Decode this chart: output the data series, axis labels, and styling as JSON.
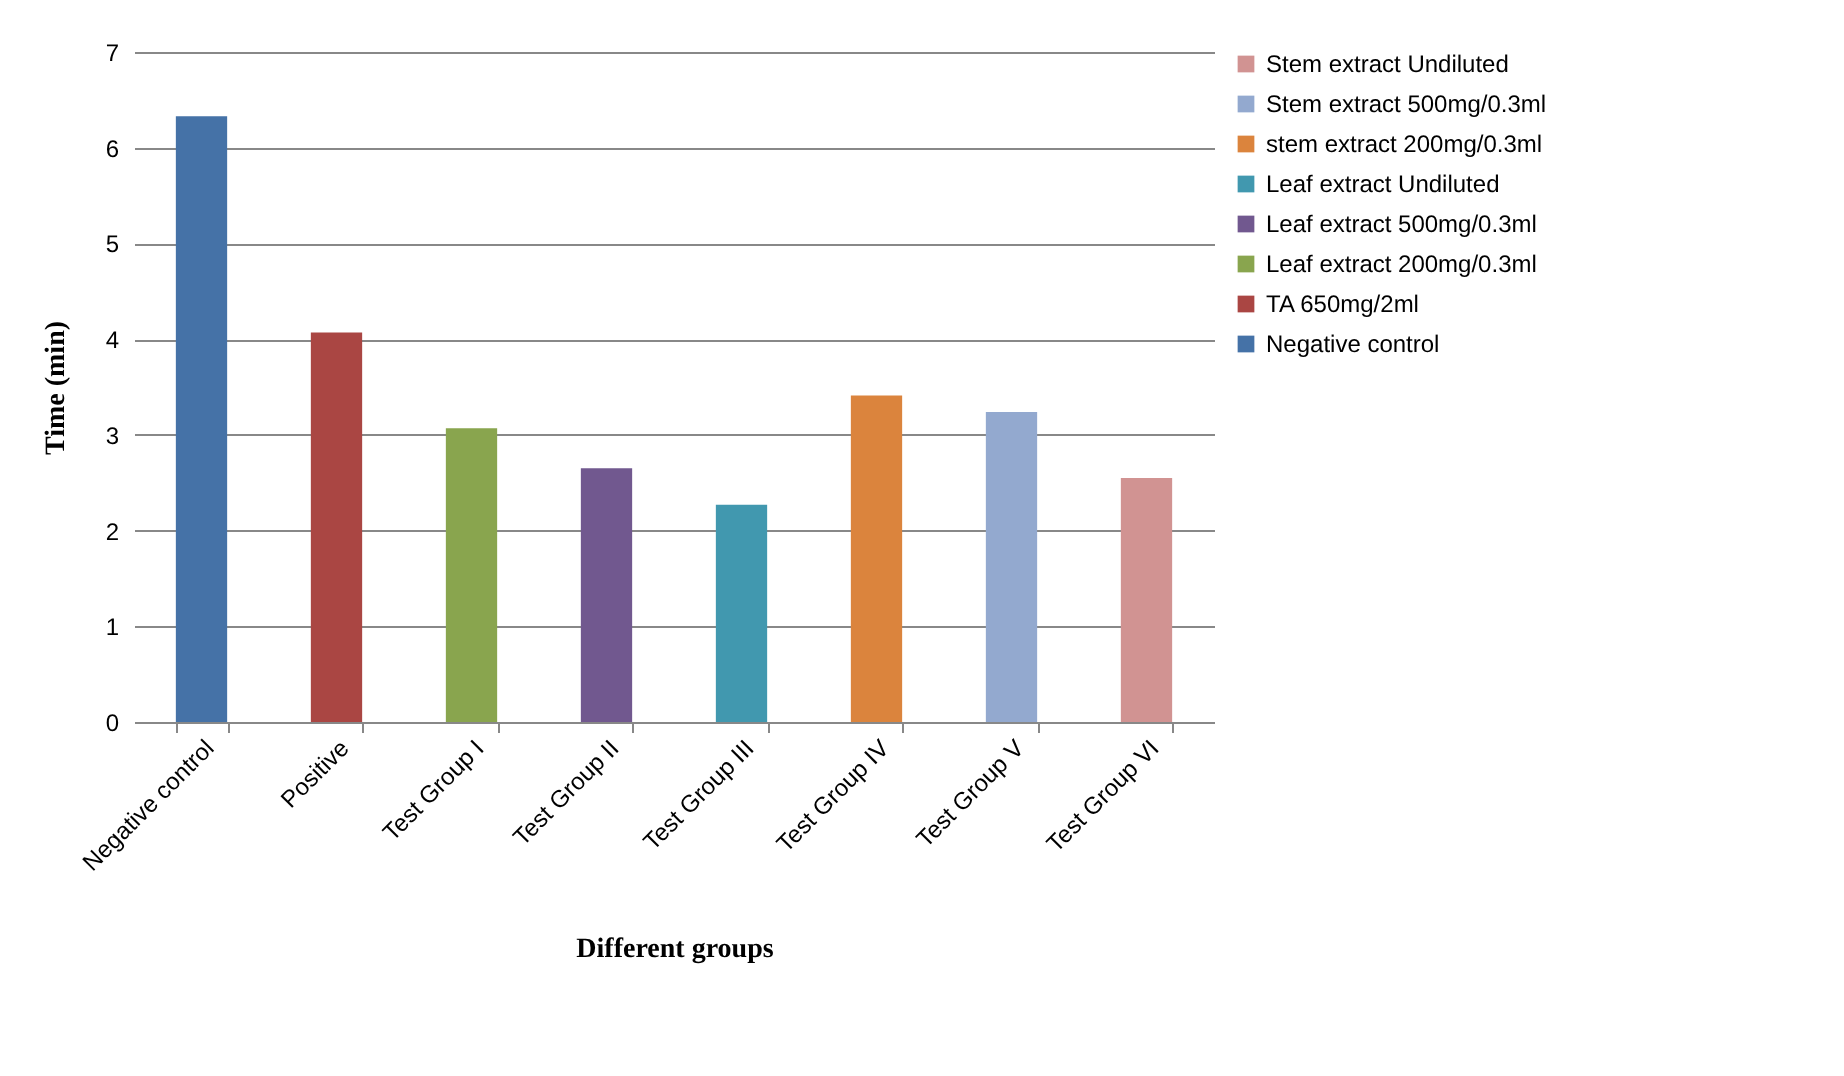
{
  "chart_data": {
    "type": "bar",
    "xlabel": "Different groups",
    "ylabel": "Time (min)",
    "categories": [
      "Negative control",
      "Positive",
      "Test Group I",
      "Test Group II",
      "Test Group III",
      "Test Group IV",
      "Test Group V",
      "Test Group VI"
    ],
    "series": [
      {
        "name": "Negative control",
        "color": "#4572a7",
        "values": [
          6.33,
          null,
          null,
          null,
          null,
          null,
          null,
          null
        ]
      },
      {
        "name": "TA 650mg/2ml",
        "color": "#aa4643",
        "values": [
          null,
          4.07,
          null,
          null,
          null,
          null,
          null,
          null
        ]
      },
      {
        "name": "Leaf extract 200mg/0.3ml",
        "color": "#89a54e",
        "values": [
          null,
          null,
          3.07,
          null,
          null,
          null,
          null,
          null
        ]
      },
      {
        "name": "Leaf extract 500mg/0.3ml",
        "color": "#71588f",
        "values": [
          null,
          null,
          null,
          2.65,
          null,
          null,
          null,
          null
        ]
      },
      {
        "name": "Leaf extract Undiluted",
        "color": "#4198af",
        "values": [
          null,
          null,
          null,
          null,
          2.27,
          null,
          null,
          null
        ]
      },
      {
        "name": "stem extract 200mg/0.3ml",
        "color": "#db843d",
        "values": [
          null,
          null,
          null,
          null,
          null,
          3.41,
          null,
          null
        ]
      },
      {
        "name": "Stem extract 500mg/0.3ml",
        "color": "#93a9cf",
        "values": [
          null,
          null,
          null,
          null,
          null,
          null,
          3.24,
          null
        ]
      },
      {
        "name": "Stem extract Undiluted",
        "color": "#d19392",
        "values": [
          null,
          null,
          null,
          null,
          null,
          null,
          null,
          2.55
        ]
      }
    ],
    "ylim": [
      0,
      7
    ],
    "yticks": [
      0,
      1,
      2,
      3,
      4,
      5,
      6,
      7
    ],
    "grid": "y",
    "legend": "right"
  }
}
